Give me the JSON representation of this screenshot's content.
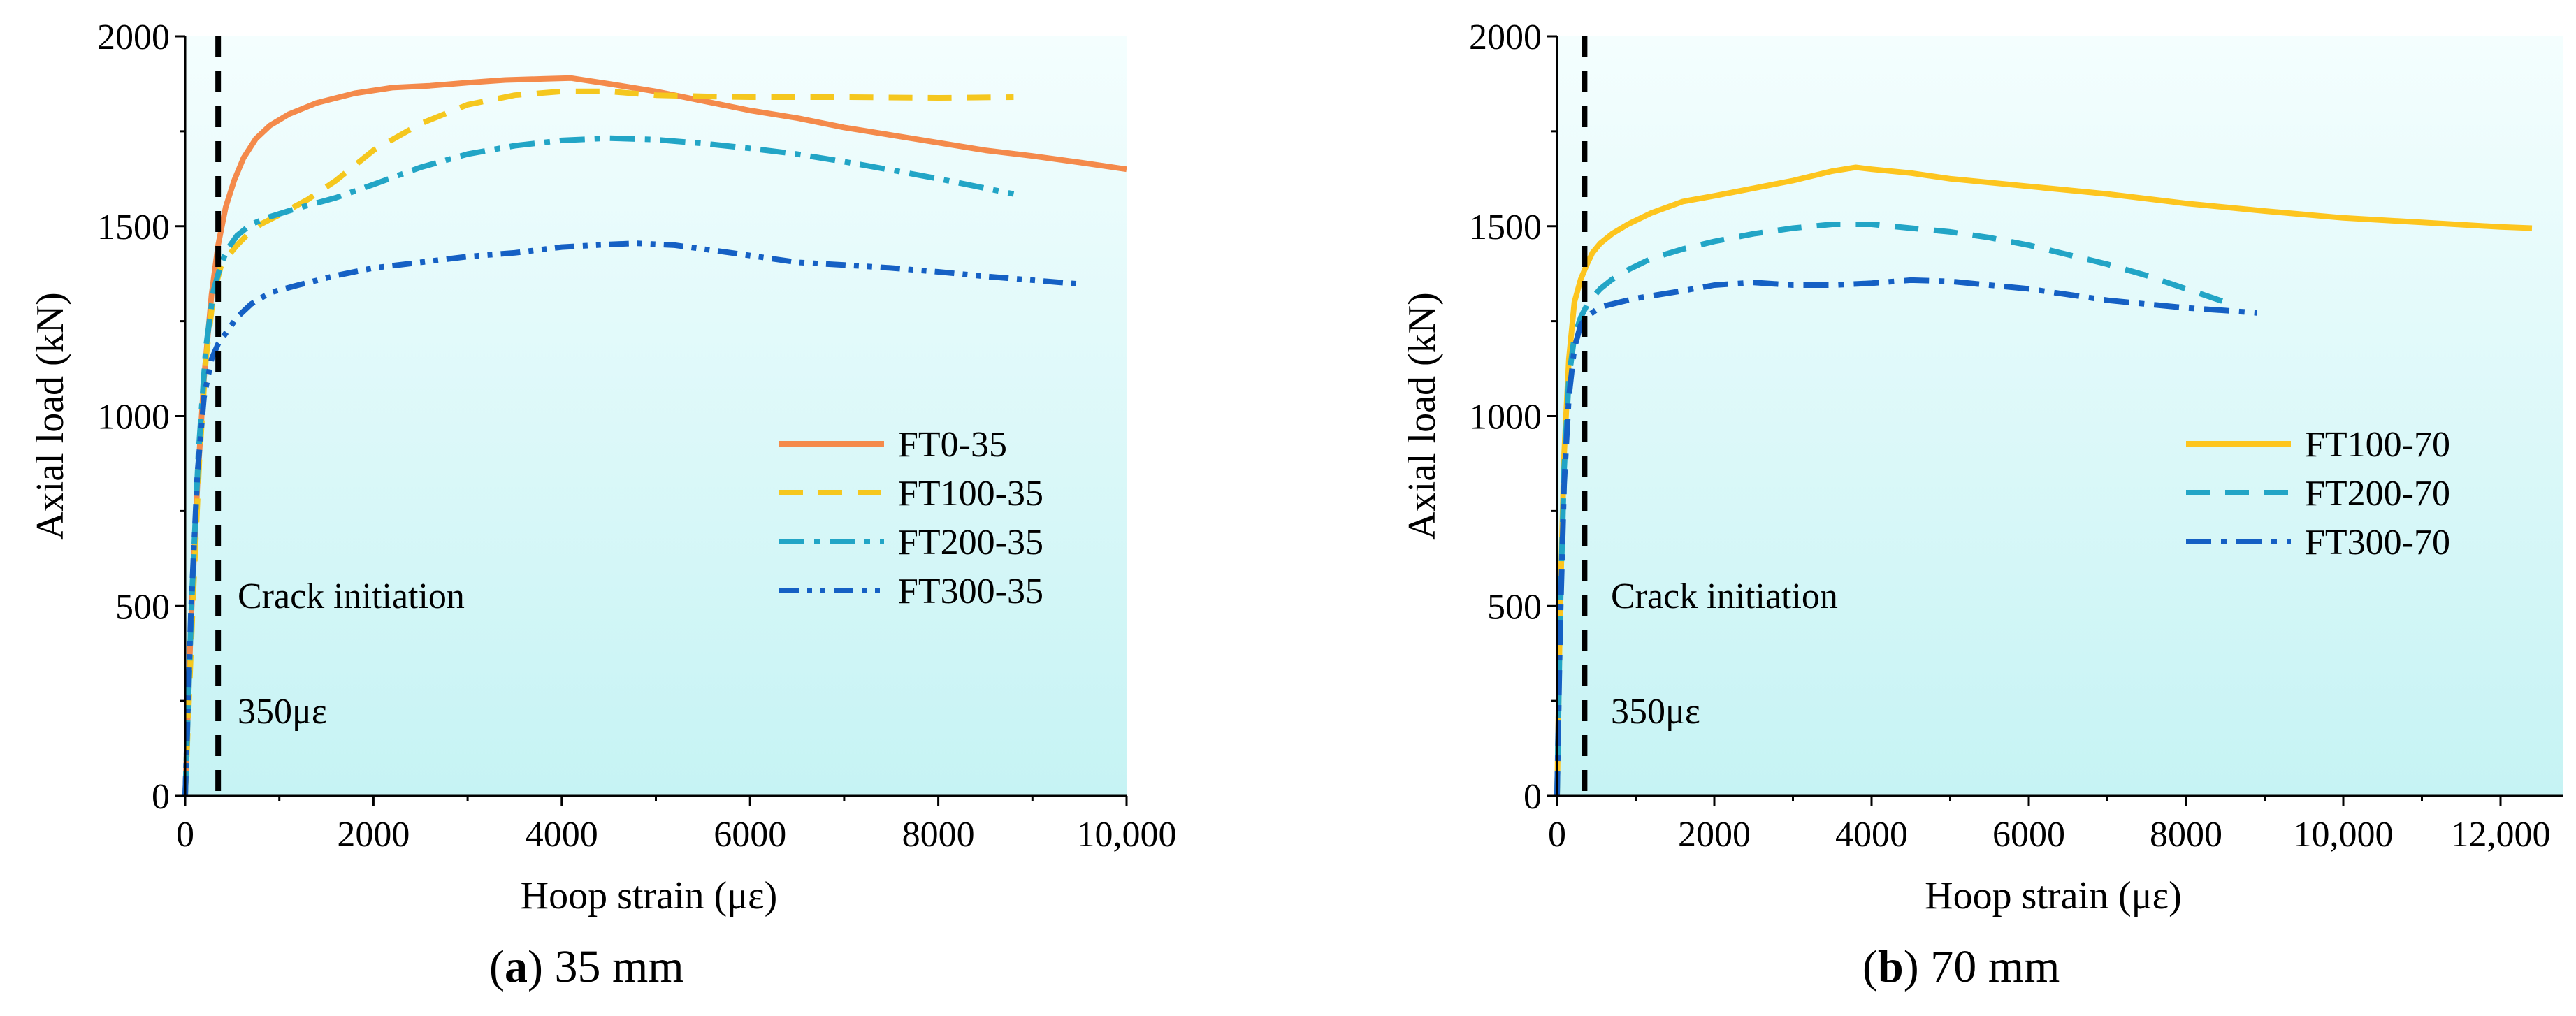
{
  "chart_data": [
    {
      "type": "line",
      "caption_letter": "a",
      "caption_rest": " 35 mm",
      "xlabel": "Hoop strain (με)",
      "ylabel": "Axial load (kN)",
      "xlim": [
        0,
        10000
      ],
      "ylim": [
        0,
        2000
      ],
      "xticks": [
        0,
        2000,
        4000,
        6000,
        8000,
        10000
      ],
      "xtick_labels": [
        "0",
        "2000",
        "4000",
        "6000",
        "8000",
        "10,000"
      ],
      "yticks": [
        0,
        500,
        1000,
        1500,
        2000
      ],
      "ytick_labels": [
        "0",
        "500",
        "1000",
        "1500",
        "2000"
      ],
      "crack_strain": 350,
      "annotation_text": "Crack initiation",
      "annotation_value": "350με",
      "series": [
        {
          "name": "FT0-35",
          "color": "#F48A4B",
          "dash": "solid",
          "x": [
            0,
            60,
            130,
            200,
            280,
            350,
            430,
            520,
            620,
            750,
            900,
            1100,
            1400,
            1800,
            2200,
            2600,
            3000,
            3400,
            3800,
            4100,
            4500,
            5000,
            5500,
            6000,
            6500,
            7000,
            7500,
            8000,
            8500,
            9000,
            9500,
            10000
          ],
          "y": [
            0,
            450,
            820,
            1100,
            1320,
            1450,
            1550,
            1620,
            1680,
            1730,
            1765,
            1795,
            1825,
            1850,
            1865,
            1870,
            1878,
            1885,
            1888,
            1890,
            1875,
            1855,
            1830,
            1805,
            1785,
            1760,
            1740,
            1720,
            1700,
            1685,
            1668,
            1650
          ]
        },
        {
          "name": "FT100-35",
          "color": "#F5C71E",
          "dash": "long",
          "x": [
            0,
            80,
            150,
            220,
            300,
            380,
            450,
            550,
            650,
            800,
            1000,
            1300,
            1600,
            2000,
            2500,
            3000,
            3500,
            4000,
            4500,
            5000,
            5500,
            6000,
            7000,
            8000,
            8800
          ],
          "y": [
            0,
            500,
            880,
            1150,
            1320,
            1395,
            1420,
            1450,
            1475,
            1505,
            1530,
            1570,
            1620,
            1700,
            1770,
            1820,
            1845,
            1855,
            1855,
            1845,
            1842,
            1840,
            1840,
            1838,
            1840
          ]
        },
        {
          "name": "FT200-35",
          "color": "#22A5C6",
          "dash": "dashdot",
          "x": [
            0,
            70,
            140,
            220,
            300,
            380,
            450,
            550,
            700,
            900,
            1200,
            1600,
            2000,
            2500,
            3000,
            3500,
            4000,
            4500,
            5000,
            5500,
            6000,
            6500,
            7000,
            7500,
            8000,
            8500,
            8800
          ],
          "y": [
            0,
            520,
            900,
            1180,
            1330,
            1400,
            1440,
            1475,
            1505,
            1525,
            1548,
            1575,
            1610,
            1655,
            1690,
            1712,
            1726,
            1732,
            1728,
            1718,
            1705,
            1690,
            1670,
            1648,
            1625,
            1600,
            1585
          ]
        },
        {
          "name": "FT300-35",
          "color": "#1560C4",
          "dash": "dashdotdot",
          "x": [
            0,
            60,
            130,
            200,
            280,
            350,
            450,
            550,
            700,
            900,
            1200,
            1600,
            2000,
            2500,
            3000,
            3500,
            4000,
            4500,
            4800,
            5200,
            5800,
            6500,
            7000,
            7500,
            8000,
            8500,
            9000,
            9500
          ],
          "y": [
            0,
            480,
            850,
            1050,
            1150,
            1190,
            1225,
            1260,
            1295,
            1325,
            1345,
            1370,
            1390,
            1405,
            1420,
            1430,
            1445,
            1452,
            1455,
            1450,
            1430,
            1405,
            1398,
            1390,
            1380,
            1368,
            1358,
            1348
          ]
        }
      ],
      "legend_position": "center-right"
    },
    {
      "type": "line",
      "caption_letter": "b",
      "caption_rest": " 70 mm",
      "xlabel": "Hoop strain (με)",
      "ylabel": "Axial load (kN)",
      "xlim": [
        0,
        12800
      ],
      "ylim": [
        0,
        2000
      ],
      "xticks": [
        0,
        2000,
        4000,
        6000,
        8000,
        10000,
        12000
      ],
      "xtick_labels": [
        "0",
        "2000",
        "4000",
        "6000",
        "8000",
        "10,000",
        "12,000"
      ],
      "yticks": [
        0,
        500,
        1000,
        1500,
        2000
      ],
      "ytick_labels": [
        "0",
        "500",
        "1000",
        "1500",
        "2000"
      ],
      "crack_strain": 350,
      "annotation_text": "Crack initiation",
      "annotation_value": "350με",
      "series": [
        {
          "name": "FT100-70",
          "color": "#FDC51E",
          "dash": "solid",
          "x": [
            0,
            40,
            90,
            150,
            220,
            300,
            380,
            450,
            550,
            700,
            900,
            1200,
            1600,
            2000,
            2500,
            3000,
            3500,
            3800,
            4000,
            4500,
            5000,
            6000,
            7000,
            8000,
            9000,
            10000,
            11000,
            12000,
            12400
          ],
          "y": [
            0,
            500,
            900,
            1150,
            1300,
            1360,
            1400,
            1430,
            1455,
            1480,
            1505,
            1535,
            1565,
            1580,
            1600,
            1620,
            1645,
            1655,
            1650,
            1640,
            1625,
            1605,
            1585,
            1560,
            1540,
            1522,
            1510,
            1498,
            1495
          ]
        },
        {
          "name": "FT200-70",
          "color": "#22A5C6",
          "dash": "long",
          "x": [
            0,
            40,
            90,
            150,
            220,
            300,
            400,
            550,
            700,
            900,
            1200,
            1600,
            2000,
            2500,
            3000,
            3500,
            4000,
            4500,
            5000,
            5500,
            6000,
            6500,
            7000,
            7500,
            8000,
            8500
          ],
          "y": [
            0,
            480,
            860,
            1100,
            1210,
            1260,
            1300,
            1335,
            1360,
            1385,
            1415,
            1440,
            1460,
            1480,
            1495,
            1505,
            1505,
            1495,
            1485,
            1470,
            1450,
            1425,
            1400,
            1370,
            1335,
            1300
          ]
        },
        {
          "name": "FT300-70",
          "color": "#1560C4",
          "dash": "dashdot",
          "x": [
            0,
            40,
            90,
            150,
            220,
            300,
            400,
            500,
            600,
            800,
            1000,
            1300,
            1600,
            2000,
            2500,
            3000,
            3500,
            4000,
            4500,
            5000,
            5500,
            6000,
            6500,
            7000,
            7500,
            8000,
            8500,
            8900
          ],
          "y": [
            0,
            450,
            820,
            1050,
            1180,
            1240,
            1265,
            1280,
            1290,
            1300,
            1310,
            1320,
            1330,
            1345,
            1352,
            1345,
            1345,
            1350,
            1358,
            1355,
            1345,
            1335,
            1320,
            1305,
            1295,
            1285,
            1278,
            1272
          ]
        }
      ],
      "legend_position": "center-right"
    }
  ]
}
